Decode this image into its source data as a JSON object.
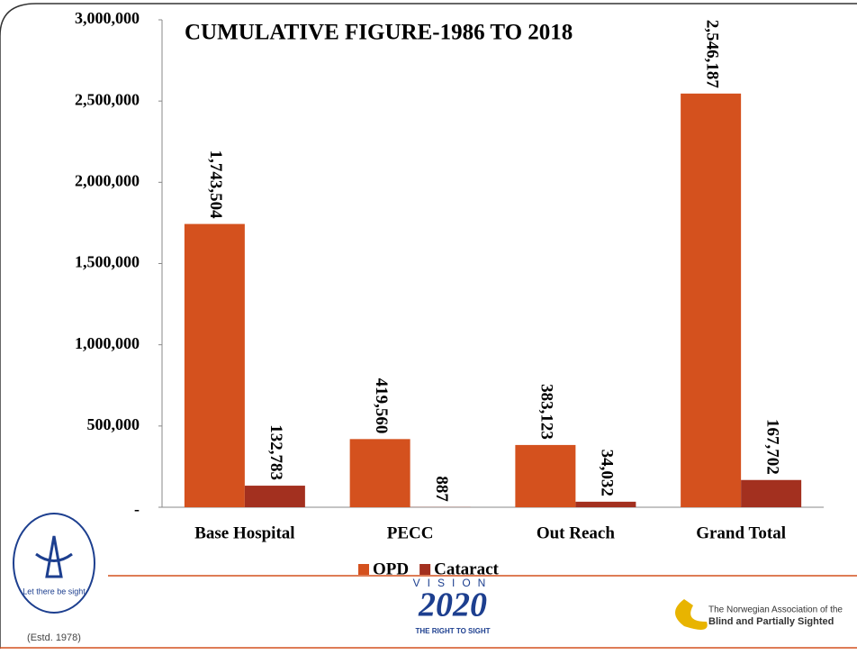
{
  "chart_data": {
    "type": "bar",
    "title": "CUMULATIVE FIGURE-1986 TO 2018",
    "categories": [
      "Base Hospital",
      "PECC",
      "Out Reach",
      "Grand Total"
    ],
    "series": [
      {
        "name": "OPD",
        "color": "#d4511e",
        "values": [
          1743504,
          419560,
          383123,
          2546187
        ],
        "value_labels": [
          "1,743,504",
          "419,560",
          "383,123",
          "2,546,187"
        ]
      },
      {
        "name": "Cataract",
        "color": "#a3301f",
        "values": [
          132783,
          887,
          34032,
          167702
        ],
        "value_labels": [
          "132,783",
          "887",
          "34,032",
          "167,702"
        ]
      }
    ],
    "ylim": [
      0,
      3000000
    ],
    "yticks": [
      {
        "value": 0,
        "label": "-"
      },
      {
        "value": 500000,
        "label": "500,000"
      },
      {
        "value": 1000000,
        "label": "1,000,000"
      },
      {
        "value": 1500000,
        "label": "1,500,000"
      },
      {
        "value": 2000000,
        "label": "2,000,000"
      },
      {
        "value": 2500000,
        "label": "2,500,000"
      },
      {
        "value": 3000000,
        "label": "3,000,000"
      }
    ],
    "grid": false,
    "legend": "bottom"
  },
  "footer": {
    "left_logo": [
      "Let there be sight",
      "(Estd. 1978)"
    ],
    "center_logo": [
      "VISION",
      "2020",
      "THE RIGHT TO SIGHT"
    ],
    "right_logo": [
      "The Norwegian Association of the",
      "Blind and Partially Sighted"
    ]
  }
}
